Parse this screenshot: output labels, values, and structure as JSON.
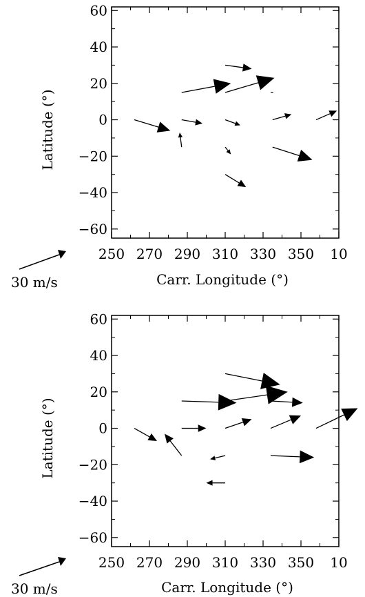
{
  "chart_data": [
    {
      "type": "vector-field",
      "xlabel": "Carr. Longitude (°)",
      "ylabel": "Latitude (°)",
      "xticks": [
        "250",
        "270",
        "290",
        "310",
        "330",
        "350",
        "10"
      ],
      "yticks": [
        "60",
        "40",
        "20",
        "0",
        "−20",
        "−40",
        "−60"
      ],
      "xlim": [
        250,
        370
      ],
      "ylim": [
        -65,
        62
      ],
      "scale_label": "30 m/s",
      "vectors": [
        {
          "x0": 262,
          "y0": 0,
          "x1": 281,
          "y1": -6
        },
        {
          "x0": 287,
          "y0": -15,
          "x1": 286,
          "y1": -7
        },
        {
          "x0": 287,
          "y0": 0,
          "x1": 298,
          "y1": -2
        },
        {
          "x0": 287,
          "y0": 15,
          "x1": 313,
          "y1": 20
        },
        {
          "x0": 310,
          "y0": 15,
          "x1": 336,
          "y1": 23
        },
        {
          "x0": 310,
          "y0": 30,
          "x1": 324,
          "y1": 28
        },
        {
          "x0": 334,
          "y0": 15,
          "x1": 335,
          "y1": 15
        },
        {
          "x0": 310,
          "y0": 0,
          "x1": 318,
          "y1": -3
        },
        {
          "x0": 310,
          "y0": -15,
          "x1": 313,
          "y1": -19
        },
        {
          "x0": 310,
          "y0": -30,
          "x1": 321,
          "y1": -37
        },
        {
          "x0": 335,
          "y0": 0,
          "x1": 345,
          "y1": 3
        },
        {
          "x0": 335,
          "y0": -15,
          "x1": 356,
          "y1": -22
        },
        {
          "x0": 358,
          "y0": 0,
          "x1": 369,
          "y1": 5
        }
      ]
    },
    {
      "type": "vector-field",
      "xlabel": "Carr. Longitude (°)",
      "ylabel": "Latitude (°)",
      "xticks": [
        "250",
        "270",
        "290",
        "310",
        "330",
        "350",
        "10"
      ],
      "yticks": [
        "60",
        "40",
        "20",
        "0",
        "−20",
        "−40",
        "−60"
      ],
      "xlim": [
        250,
        370
      ],
      "ylim": [
        -65,
        62
      ],
      "scale_label": "30 m/s",
      "vectors": [
        {
          "x0": 262,
          "y0": 0,
          "x1": 274,
          "y1": -7
        },
        {
          "x0": 287,
          "y0": -15,
          "x1": 278,
          "y1": -3
        },
        {
          "x0": 287,
          "y0": 0,
          "x1": 300,
          "y1": 0
        },
        {
          "x0": 287,
          "y0": 15,
          "x1": 316,
          "y1": 14
        },
        {
          "x0": 310,
          "y0": 30,
          "x1": 339,
          "y1": 24
        },
        {
          "x0": 310,
          "y0": 15,
          "x1": 343,
          "y1": 20
        },
        {
          "x0": 334,
          "y0": 15,
          "x1": 351,
          "y1": 14
        },
        {
          "x0": 310,
          "y0": 0,
          "x1": 324,
          "y1": 5
        },
        {
          "x0": 310,
          "y0": -15,
          "x1": 302,
          "y1": -17
        },
        {
          "x0": 310,
          "y0": -30,
          "x1": 300,
          "y1": -30
        },
        {
          "x0": 334,
          "y0": 0,
          "x1": 350,
          "y1": 7
        },
        {
          "x0": 334,
          "y0": -15,
          "x1": 357,
          "y1": -16
        },
        {
          "x0": 358,
          "y0": 0,
          "x1": 380,
          "y1": 11
        }
      ]
    }
  ]
}
